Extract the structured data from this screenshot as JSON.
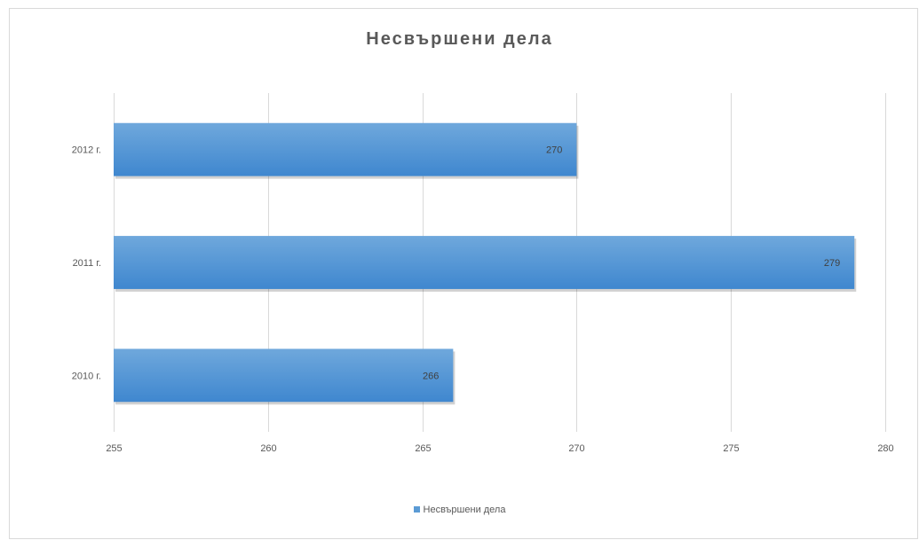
{
  "chart_data": {
    "type": "bar",
    "orientation": "horizontal",
    "title": "Несвършени дела",
    "categories": [
      "2012 г.",
      "2011 г.",
      "2010 г."
    ],
    "series": [
      {
        "name": "Несвършени дела",
        "values": [
          270,
          279,
          266
        ],
        "color": "#5b9bd5"
      }
    ],
    "data_labels": [
      "270",
      "279",
      "266"
    ],
    "xlim": [
      255,
      280
    ],
    "x_ticks": [
      "255",
      "260",
      "265",
      "270",
      "275",
      "280"
    ],
    "xlabel": "",
    "ylabel": "",
    "grid": true,
    "legend_position": "bottom"
  }
}
